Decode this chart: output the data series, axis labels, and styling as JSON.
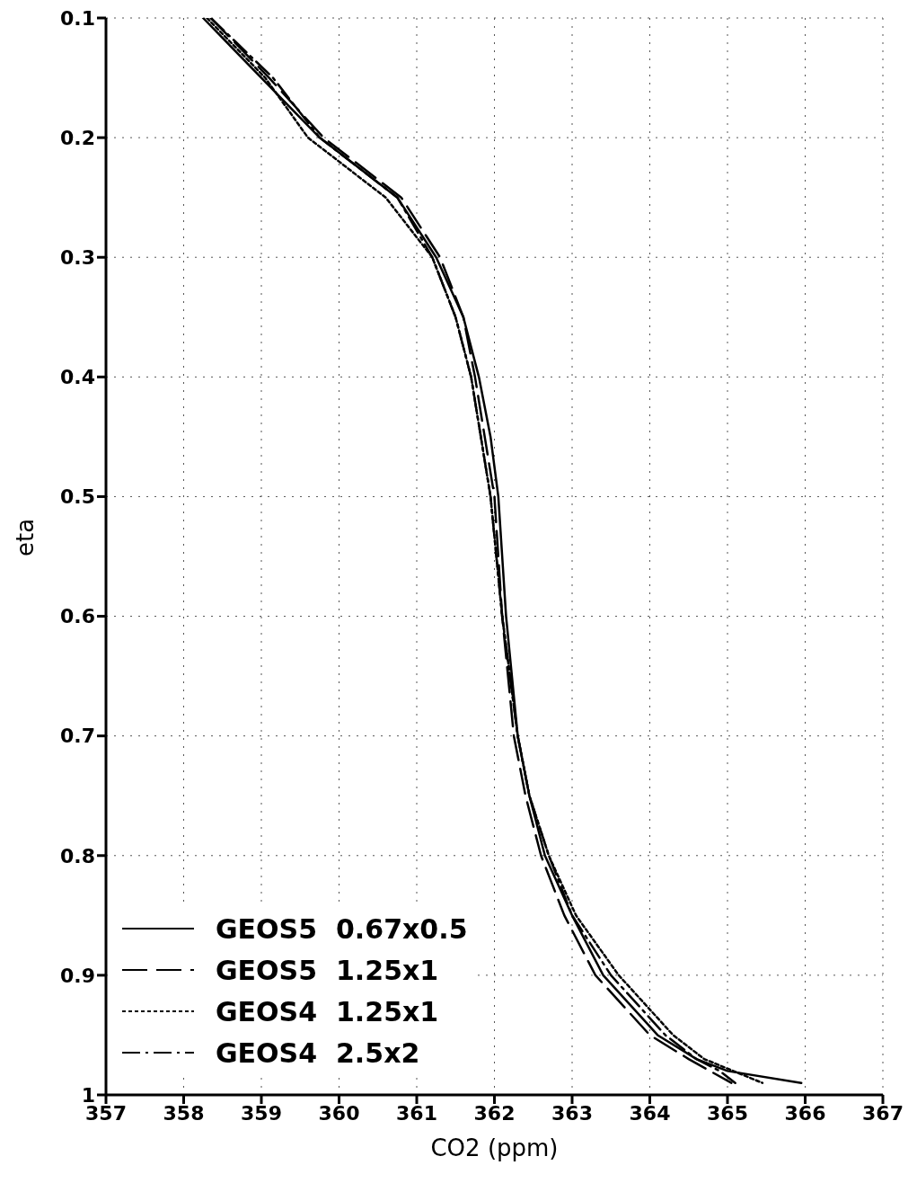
{
  "chart_data": {
    "type": "line",
    "xlabel": "CO2 (ppm)",
    "ylabel": "eta",
    "xlim": [
      357,
      367
    ],
    "xticks": [
      357,
      358,
      359,
      360,
      361,
      362,
      363,
      364,
      365,
      366,
      367
    ],
    "ylim": [
      1,
      0.1
    ],
    "yticks": [
      0.1,
      0.2,
      0.3,
      0.4,
      0.5,
      0.6,
      0.7,
      0.8,
      0.9,
      1
    ],
    "grid": true,
    "legend": "bottom left",
    "series": [
      {
        "name": "GEOS5  0.67x0.5",
        "color": "#000000",
        "line_style": "solid",
        "x": [
          358.25,
          359.0,
          359.75,
          360.75,
          361.25,
          361.6,
          361.8,
          361.95,
          362.05,
          362.15,
          362.3,
          362.45,
          362.65,
          363.0,
          363.4,
          364.1,
          364.6,
          365.0,
          365.95
        ],
        "values": [
          0.1,
          0.15,
          0.2,
          0.25,
          0.3,
          0.35,
          0.4,
          0.45,
          0.5,
          0.6,
          0.7,
          0.75,
          0.8,
          0.85,
          0.9,
          0.95,
          0.97,
          0.98,
          0.99
        ]
      },
      {
        "name": "GEOS5  1.25x1",
        "color": "#000000",
        "line_style": "dashed",
        "x": [
          358.35,
          359.1,
          359.8,
          360.8,
          361.3,
          361.6,
          361.75,
          362.0,
          362.1,
          362.25,
          362.4,
          362.6,
          362.9,
          363.3,
          364.0,
          364.5,
          365.05
        ],
        "values": [
          0.1,
          0.15,
          0.2,
          0.25,
          0.3,
          0.35,
          0.4,
          0.5,
          0.6,
          0.7,
          0.75,
          0.8,
          0.85,
          0.9,
          0.95,
          0.97,
          0.99
        ]
      },
      {
        "name": "GEOS4  1.25x1",
        "color": "#000000",
        "line_style": "dotted",
        "x": [
          358.3,
          359.05,
          359.6,
          360.6,
          361.2,
          361.5,
          361.7,
          361.95,
          362.1,
          362.3,
          362.45,
          362.7,
          363.05,
          363.6,
          364.3,
          364.7,
          365.45
        ],
        "values": [
          0.1,
          0.15,
          0.2,
          0.25,
          0.3,
          0.35,
          0.4,
          0.5,
          0.6,
          0.7,
          0.75,
          0.8,
          0.85,
          0.9,
          0.95,
          0.97,
          0.99
        ]
      },
      {
        "name": "GEOS4  2.5x2",
        "color": "#000000",
        "line_style": "dashdot",
        "x": [
          358.35,
          359.15,
          359.75,
          360.75,
          361.2,
          361.5,
          361.7,
          361.95,
          362.1,
          362.3,
          362.45,
          362.7,
          363.0,
          363.5,
          364.2,
          364.6,
          364.9,
          365.1
        ],
        "values": [
          0.1,
          0.15,
          0.2,
          0.25,
          0.3,
          0.35,
          0.4,
          0.5,
          0.6,
          0.7,
          0.75,
          0.8,
          0.85,
          0.9,
          0.95,
          0.97,
          0.98,
          0.99
        ]
      }
    ]
  }
}
